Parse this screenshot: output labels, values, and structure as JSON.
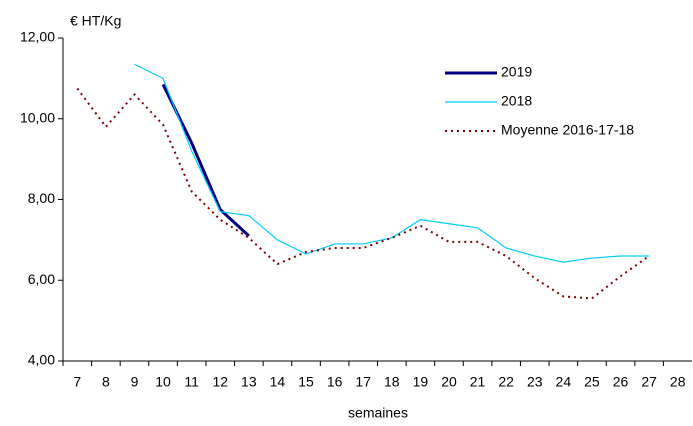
{
  "chart_data": {
    "type": "line",
    "y_label": "€ HT/Kg",
    "x_label": "semaines",
    "categories": [
      "7",
      "8",
      "9",
      "10",
      "11",
      "12",
      "13",
      "14",
      "15",
      "16",
      "17",
      "18",
      "19",
      "20",
      "21",
      "22",
      "23",
      "24",
      "25",
      "26",
      "27",
      "28"
    ],
    "series": [
      {
        "name": "2019",
        "color": "#000080",
        "style": "solid",
        "width": 3,
        "values": [
          null,
          null,
          null,
          10.85,
          9.4,
          7.75,
          7.1,
          null,
          null,
          null,
          null,
          null,
          null,
          null,
          null,
          null,
          null,
          null,
          null,
          null,
          null,
          null
        ]
      },
      {
        "name": "2018",
        "color": "#00ccff",
        "style": "solid",
        "width": 1.2,
        "values": [
          null,
          null,
          11.35,
          11.0,
          9.2,
          7.7,
          7.6,
          7.0,
          6.65,
          6.9,
          6.9,
          7.05,
          7.5,
          7.4,
          7.3,
          6.8,
          6.6,
          6.45,
          6.55,
          6.6,
          6.6,
          null
        ]
      },
      {
        "name": "Moyenne 2016-17-18",
        "color": "#800000",
        "style": "dotted",
        "width": 2,
        "values": [
          10.75,
          9.8,
          10.6,
          9.85,
          8.2,
          7.5,
          7.05,
          6.4,
          6.7,
          6.8,
          6.8,
          7.05,
          7.35,
          6.95,
          6.95,
          6.6,
          6.05,
          5.6,
          5.55,
          6.1,
          6.6,
          null
        ]
      }
    ],
    "ylim": [
      4,
      12
    ],
    "yticks": [
      {
        "value": 4,
        "label": "4,00"
      },
      {
        "value": 6,
        "label": "6,00"
      },
      {
        "value": 8,
        "label": "8,00"
      },
      {
        "value": 10,
        "label": "10,00"
      },
      {
        "value": 12,
        "label": "12,00"
      }
    ],
    "grid": false,
    "legend": "top-right"
  }
}
